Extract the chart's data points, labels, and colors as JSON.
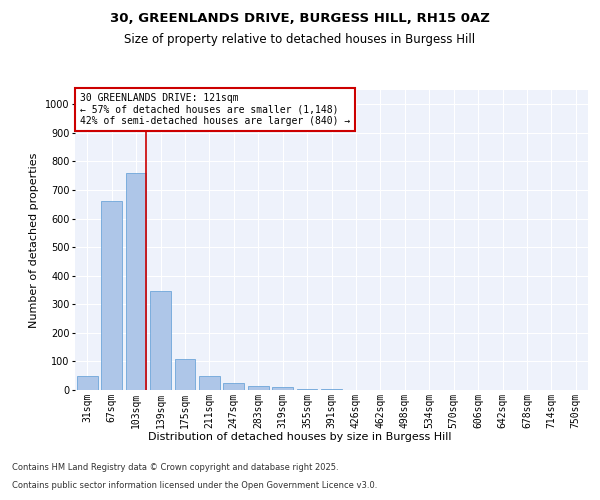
{
  "title1": "30, GREENLANDS DRIVE, BURGESS HILL, RH15 0AZ",
  "title2": "Size of property relative to detached houses in Burgess Hill",
  "xlabel": "Distribution of detached houses by size in Burgess Hill",
  "ylabel": "Number of detached properties",
  "categories": [
    "31sqm",
    "67sqm",
    "103sqm",
    "139sqm",
    "175sqm",
    "211sqm",
    "247sqm",
    "283sqm",
    "319sqm",
    "355sqm",
    "391sqm",
    "426sqm",
    "462sqm",
    "498sqm",
    "534sqm",
    "570sqm",
    "606sqm",
    "642sqm",
    "678sqm",
    "714sqm",
    "750sqm"
  ],
  "values": [
    50,
    660,
    760,
    345,
    110,
    50,
    25,
    15,
    10,
    5,
    2,
    1,
    1,
    0,
    0,
    0,
    0,
    0,
    0,
    0,
    0
  ],
  "bar_color": "#aec6e8",
  "bar_edge_color": "#5b9bd5",
  "annotation_text": "30 GREENLANDS DRIVE: 121sqm\n← 57% of detached houses are smaller (1,148)\n42% of semi-detached houses are larger (840) →",
  "annotation_box_color": "#ffffff",
  "annotation_box_edge_color": "#cc0000",
  "vline_color": "#cc0000",
  "ylim": [
    0,
    1050
  ],
  "yticks": [
    0,
    100,
    200,
    300,
    400,
    500,
    600,
    700,
    800,
    900,
    1000
  ],
  "background_color": "#eef2fb",
  "grid_color": "#ffffff",
  "footer1": "Contains HM Land Registry data © Crown copyright and database right 2025.",
  "footer2": "Contains public sector information licensed under the Open Government Licence v3.0.",
  "title_fontsize": 9.5,
  "subtitle_fontsize": 8.5,
  "axis_label_fontsize": 8,
  "tick_fontsize": 7,
  "annotation_fontsize": 7,
  "footer_fontsize": 6
}
